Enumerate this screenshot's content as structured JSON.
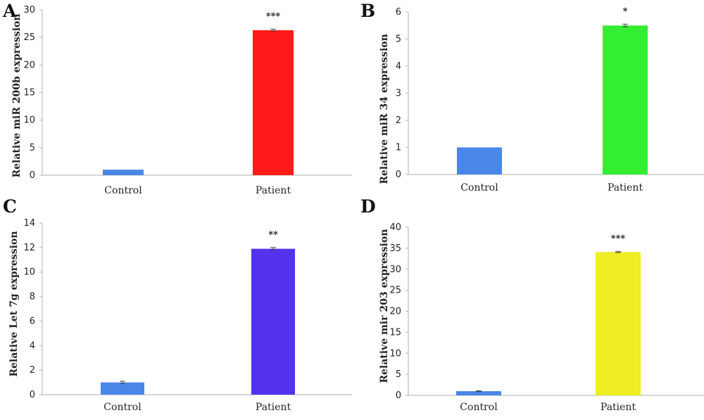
{
  "chart_data": [
    {
      "panel": "A",
      "type": "bar",
      "ylabel": "Relative miR 200b expression",
      "categories": [
        "Control",
        "Patient"
      ],
      "values": [
        1,
        26.3
      ],
      "errors": [
        0.05,
        0.2
      ],
      "colors": [
        "#4a86e8",
        "#ff1a1a"
      ],
      "significance": [
        "",
        "***"
      ],
      "ylim": [
        0,
        30
      ],
      "yticks": [
        0,
        5,
        10,
        15,
        20,
        25,
        30
      ]
    },
    {
      "panel": "B",
      "type": "bar",
      "ylabel": "Relative miR 34 expression",
      "categories": [
        "Control",
        "Patient"
      ],
      "values": [
        1,
        5.5
      ],
      "errors": [
        0.01,
        0.05
      ],
      "colors": [
        "#4a86e8",
        "#33ee33"
      ],
      "significance": [
        "",
        "*"
      ],
      "ylim": [
        0,
        6
      ],
      "yticks": [
        0,
        1,
        2,
        3,
        4,
        5,
        6
      ]
    },
    {
      "panel": "C",
      "type": "bar",
      "ylabel": "Relative Let 7g expression",
      "categories": [
        "Control",
        "Patient"
      ],
      "values": [
        1,
        11.9
      ],
      "errors": [
        0.1,
        0.1
      ],
      "colors": [
        "#4a86e8",
        "#5533ee"
      ],
      "significance": [
        "",
        "**"
      ],
      "ylim": [
        0,
        14
      ],
      "yticks": [
        0,
        2,
        4,
        6,
        8,
        10,
        12,
        14
      ]
    },
    {
      "panel": "D",
      "type": "bar",
      "ylabel": "Relative mir 203 expression",
      "categories": [
        "Control",
        "Patient"
      ],
      "values": [
        1,
        34.1
      ],
      "errors": [
        0.1,
        0.15
      ],
      "colors": [
        "#4a86e8",
        "#eeee22"
      ],
      "significance": [
        "",
        "***"
      ],
      "ylim": [
        0,
        40
      ],
      "yticks": [
        0,
        5,
        10,
        15,
        20,
        25,
        30,
        35,
        40
      ]
    }
  ]
}
